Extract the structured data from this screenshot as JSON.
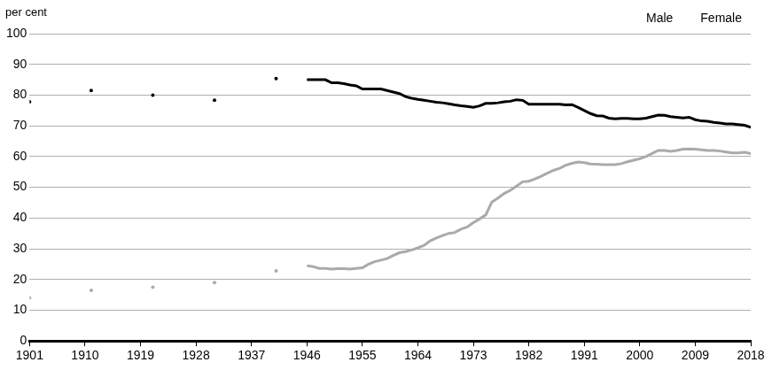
{
  "chart_data": {
    "type": "line",
    "ylabel": "per cent",
    "x": [
      1901,
      1911,
      1921,
      1931,
      1941,
      1946,
      1947,
      1948,
      1949,
      1950,
      1951,
      1952,
      1953,
      1954,
      1955,
      1956,
      1957,
      1958,
      1959,
      1960,
      1961,
      1962,
      1963,
      1964,
      1965,
      1966,
      1967,
      1968,
      1969,
      1970,
      1971,
      1972,
      1973,
      1974,
      1975,
      1976,
      1977,
      1978,
      1979,
      1980,
      1981,
      1982,
      1983,
      1984,
      1985,
      1986,
      1987,
      1988,
      1989,
      1990,
      1991,
      1992,
      1993,
      1994,
      1995,
      1996,
      1997,
      1998,
      1999,
      2000,
      2001,
      2002,
      2003,
      2004,
      2005,
      2006,
      2007,
      2008,
      2009,
      2010,
      2011,
      2012,
      2013,
      2014,
      2015,
      2016,
      2017,
      2018
    ],
    "series": [
      {
        "name": "Male",
        "color": "#000000",
        "values": [
          77.8,
          81.5,
          80,
          78.3,
          85.4,
          85,
          85,
          85,
          85,
          84,
          84,
          83.7,
          83.3,
          83,
          82,
          82,
          82,
          82,
          81.5,
          81,
          80.5,
          79.5,
          79,
          78.6,
          78.3,
          78,
          77.7,
          77.5,
          77.2,
          76.8,
          76.5,
          76.3,
          76,
          76.5,
          77.3,
          77.3,
          77.5,
          77.8,
          78,
          78.5,
          78.3,
          77,
          77,
          77,
          77,
          77,
          77,
          76.8,
          76.9,
          76,
          75,
          74,
          73.3,
          73.2,
          72.5,
          72.3,
          72.4,
          72.4,
          72.3,
          72.3,
          72.5,
          73,
          73.5,
          73.4,
          73,
          72.8,
          72.6,
          72.8,
          72,
          71.6,
          71.5,
          71.1,
          70.9,
          70.6,
          70.6,
          70.4,
          70.2,
          69.5
        ]
      },
      {
        "name": "Female",
        "color": "#aaaaaa",
        "values": [
          14,
          16.5,
          17.5,
          19,
          22.8,
          24.5,
          24.2,
          23.6,
          23.6,
          23.4,
          23.5,
          23.5,
          23.4,
          23.6,
          23.8,
          25,
          25.8,
          26.3,
          26.8,
          27.8,
          28.7,
          29.1,
          29.6,
          30.3,
          31.1,
          32.6,
          33.5,
          34.3,
          35,
          35.3,
          36.4,
          37.1,
          38.5,
          39.7,
          41,
          45.2,
          46.5,
          48,
          49,
          50.4,
          51.8,
          52,
          52.7,
          53.6,
          54.6,
          55.5,
          56.2,
          57.2,
          57.8,
          58.2,
          58,
          57.6,
          57.5,
          57.4,
          57.4,
          57.4,
          57.7,
          58.3,
          58.8,
          59.3,
          60,
          61,
          62,
          62,
          61.7,
          62,
          62.4,
          62.5,
          62.4,
          62.2,
          62,
          62,
          61.8,
          61.5,
          61.2,
          61.2,
          61.4,
          61
        ]
      }
    ],
    "xlim": [
      1901,
      2018
    ],
    "xticks": [
      1901,
      1910,
      1919,
      1928,
      1937,
      1946,
      1955,
      1964,
      1973,
      1982,
      1991,
      2000,
      2009,
      2018
    ],
    "ylim": [
      0,
      100
    ],
    "yticks": [
      0,
      10,
      20,
      30,
      40,
      50,
      60,
      70,
      80,
      90,
      100
    ],
    "grid": true,
    "legend": "upper right"
  }
}
